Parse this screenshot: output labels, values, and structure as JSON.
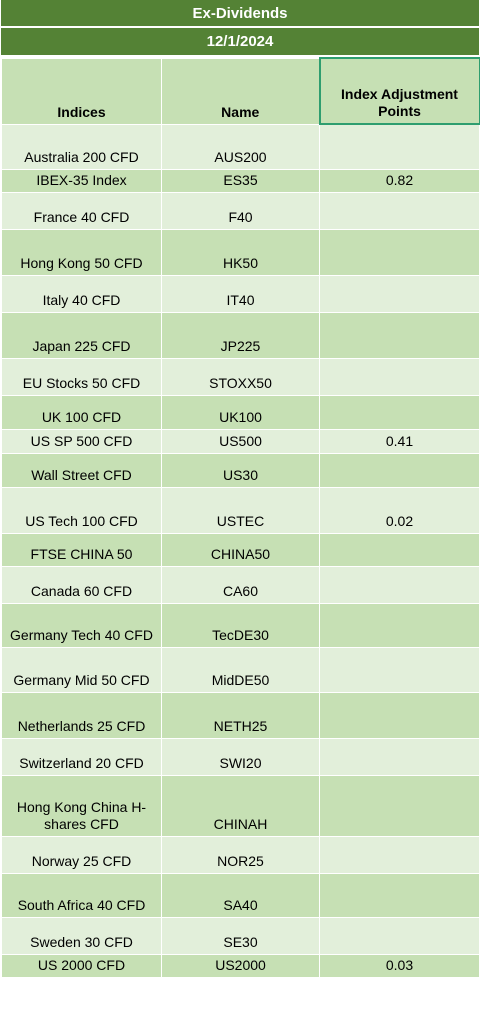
{
  "title": "Ex-Dividends",
  "date": "12/1/2024",
  "headers": {
    "indices": "Indices",
    "name": "Name",
    "adjustment": "Index Adjustment Points"
  },
  "rows": [
    {
      "index": "Australia 200 CFD",
      "name": "AUS200",
      "points": ""
    },
    {
      "index": "IBEX-35 Index",
      "name": "ES35",
      "points": "0.82"
    },
    {
      "index": "France 40 CFD",
      "name": "F40",
      "points": ""
    },
    {
      "index": "Hong Kong 50 CFD",
      "name": "HK50",
      "points": ""
    },
    {
      "index": "Italy 40 CFD",
      "name": "IT40",
      "points": ""
    },
    {
      "index": "Japan 225 CFD",
      "name": "JP225",
      "points": ""
    },
    {
      "index": "EU Stocks 50 CFD",
      "name": "STOXX50",
      "points": ""
    },
    {
      "index": "UK 100 CFD",
      "name": "UK100",
      "points": ""
    },
    {
      "index": "US SP 500 CFD",
      "name": "US500",
      "points": "0.41"
    },
    {
      "index": "Wall Street CFD",
      "name": "US30",
      "points": ""
    },
    {
      "index": "US Tech 100 CFD",
      "name": "USTEC",
      "points": "0.02"
    },
    {
      "index": "FTSE CHINA 50",
      "name": "CHINA50",
      "points": ""
    },
    {
      "index": "Canada 60 CFD",
      "name": "CA60",
      "points": ""
    },
    {
      "index": "Germany Tech 40 CFD",
      "name": "TecDE30",
      "points": ""
    },
    {
      "index": "Germany Mid 50 CFD",
      "name": "MidDE50",
      "points": ""
    },
    {
      "index": "Netherlands 25 CFD",
      "name": "NETH25",
      "points": ""
    },
    {
      "index": "Switzerland 20 CFD",
      "name": "SWI20",
      "points": ""
    },
    {
      "index": "Hong Kong China H-shares CFD",
      "name": "CHINAH",
      "points": ""
    },
    {
      "index": "Norway 25 CFD",
      "name": "NOR25",
      "points": ""
    },
    {
      "index": "South Africa 40 CFD",
      "name": "SA40",
      "points": ""
    },
    {
      "index": "Sweden 30 CFD",
      "name": "SE30",
      "points": ""
    },
    {
      "index": "US 2000 CFD",
      "name": "US2000",
      "points": "0.03"
    }
  ]
}
